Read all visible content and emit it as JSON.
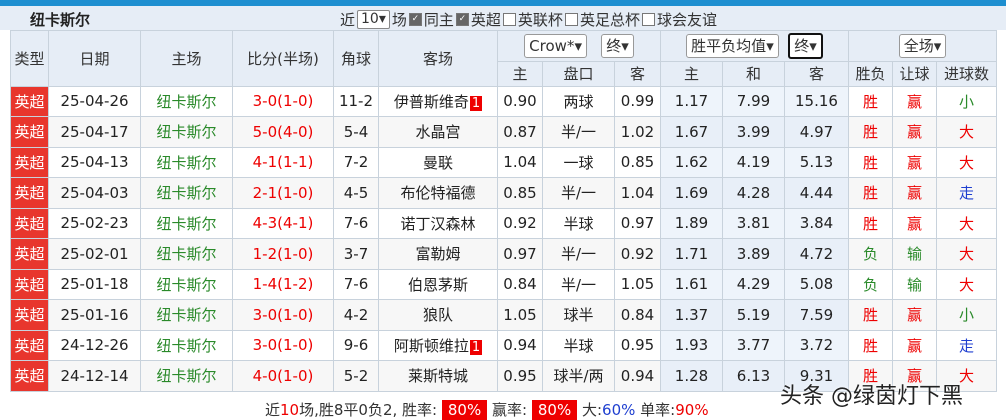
{
  "title": "纽卡斯尔",
  "filters": {
    "recent_prefix": "近",
    "recent_count": "10",
    "recent_suffix": "场",
    "same_home": "同主",
    "options": [
      {
        "label": "英超",
        "checked": true
      },
      {
        "label": "英联杯",
        "checked": false
      },
      {
        "label": "英足总杯",
        "checked": false
      },
      {
        "label": "球会友谊",
        "checked": false
      }
    ]
  },
  "headers": {
    "type": "类型",
    "date": "日期",
    "home": "主场",
    "score": "比分(半场)",
    "corner": "角球",
    "away": "客场",
    "company": "Crow*",
    "company_stage": "终",
    "odds_type": "胜平负均值",
    "odds_stage": "终",
    "period": "全场",
    "ah_home": "主",
    "ah_line": "盘口",
    "ah_away": "客",
    "eu_home": "主",
    "eu_draw": "和",
    "eu_away": "客",
    "wl": "胜负",
    "handicap": "让球",
    "goals": "进球数"
  },
  "colors": {
    "league": "#e8362d",
    "win": "#ee0000",
    "lose": "#2a8a2a",
    "push": "#1f3fd0"
  },
  "rows": [
    {
      "league": "英超",
      "date": "25-04-26",
      "home": "纽卡斯尔",
      "score": "3-0",
      "ht": "(1-0)",
      "corner": "11-2",
      "away": "伊普斯维奇",
      "red": "1",
      "h": "0.90",
      "line": "两球",
      "a": "0.99",
      "w": "1.17",
      "d": "7.99",
      "l": "15.16",
      "wl": "胜",
      "hc": "赢",
      "goals": "小"
    },
    {
      "league": "英超",
      "date": "25-04-17",
      "home": "纽卡斯尔",
      "score": "5-0",
      "ht": "(4-0)",
      "corner": "5-4",
      "away": "水晶宫",
      "red": "",
      "h": "0.87",
      "line": "半/一",
      "a": "1.02",
      "w": "1.67",
      "d": "3.99",
      "l": "4.97",
      "wl": "胜",
      "hc": "赢",
      "goals": "大"
    },
    {
      "league": "英超",
      "date": "25-04-13",
      "home": "纽卡斯尔",
      "score": "4-1",
      "ht": "(1-1)",
      "corner": "7-2",
      "away": "曼联",
      "red": "",
      "h": "1.04",
      "line": "一球",
      "a": "0.85",
      "w": "1.62",
      "d": "4.19",
      "l": "5.13",
      "wl": "胜",
      "hc": "赢",
      "goals": "大"
    },
    {
      "league": "英超",
      "date": "25-04-03",
      "home": "纽卡斯尔",
      "score": "2-1",
      "ht": "(1-0)",
      "corner": "4-5",
      "away": "布伦特福德",
      "red": "",
      "h": "0.85",
      "line": "半/一",
      "a": "1.04",
      "w": "1.69",
      "d": "4.28",
      "l": "4.44",
      "wl": "胜",
      "hc": "赢",
      "goals": "走"
    },
    {
      "league": "英超",
      "date": "25-02-23",
      "home": "纽卡斯尔",
      "score": "4-3",
      "ht": "(4-1)",
      "corner": "7-6",
      "away": "诺丁汉森林",
      "red": "",
      "h": "0.92",
      "line": "半球",
      "a": "0.97",
      "w": "1.89",
      "d": "3.81",
      "l": "3.84",
      "wl": "胜",
      "hc": "赢",
      "goals": "大"
    },
    {
      "league": "英超",
      "date": "25-02-01",
      "home": "纽卡斯尔",
      "score": "1-2",
      "ht": "(1-0)",
      "corner": "3-7",
      "away": "富勒姆",
      "red": "",
      "h": "0.97",
      "line": "半/一",
      "a": "0.92",
      "w": "1.71",
      "d": "3.89",
      "l": "4.72",
      "wl": "负",
      "hc": "输",
      "goals": "大"
    },
    {
      "league": "英超",
      "date": "25-01-18",
      "home": "纽卡斯尔",
      "score": "1-4",
      "ht": "(1-2)",
      "corner": "7-6",
      "away": "伯恩茅斯",
      "red": "",
      "h": "0.84",
      "line": "半/一",
      "a": "1.05",
      "w": "1.61",
      "d": "4.29",
      "l": "5.08",
      "wl": "负",
      "hc": "输",
      "goals": "大"
    },
    {
      "league": "英超",
      "date": "25-01-16",
      "home": "纽卡斯尔",
      "score": "3-0",
      "ht": "(1-0)",
      "corner": "4-2",
      "away": "狼队",
      "red": "",
      "h": "1.05",
      "line": "球半",
      "a": "0.84",
      "w": "1.37",
      "d": "5.19",
      "l": "7.59",
      "wl": "胜",
      "hc": "赢",
      "goals": "小"
    },
    {
      "league": "英超",
      "date": "24-12-26",
      "home": "纽卡斯尔",
      "score": "3-0",
      "ht": "(1-0)",
      "corner": "9-6",
      "away": "阿斯顿维拉",
      "red": "1",
      "h": "0.94",
      "line": "半球",
      "a": "0.95",
      "w": "1.93",
      "d": "3.77",
      "l": "3.72",
      "wl": "胜",
      "hc": "赢",
      "goals": "走"
    },
    {
      "league": "英超",
      "date": "24-12-14",
      "home": "纽卡斯尔",
      "score": "4-0",
      "ht": "(1-0)",
      "corner": "5-2",
      "away": "莱斯特城",
      "red": "",
      "h": "0.95",
      "line": "球半/两",
      "a": "0.94",
      "w": "1.28",
      "d": "6.13",
      "l": "9.31",
      "wl": "胜",
      "hc": "赢",
      "goals": "大"
    }
  ],
  "summary": {
    "p1": "近",
    "n": "10",
    "p2": "场,胜8平0负2, 胜率:",
    "win_rate": "80%",
    "p3": "赢率:",
    "hc_rate": "80%",
    "p4": "大:",
    "over_rate": "60%",
    "p5": "单率:",
    "odd_rate": "90%"
  },
  "watermark": "头条 @绿茵灯下黑"
}
